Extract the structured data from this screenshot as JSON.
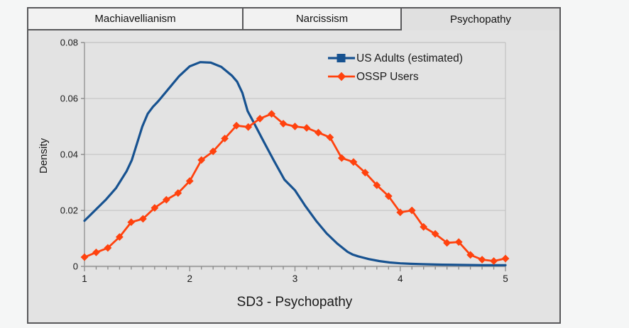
{
  "tabs": {
    "items": [
      {
        "label": "Machiavellianism",
        "active": false
      },
      {
        "label": "Narcissism",
        "active": false
      },
      {
        "label": "Psychopathy",
        "active": true
      }
    ]
  },
  "chart_data": {
    "type": "line",
    "title": "",
    "xlabel": "SD3 - Psychopathy",
    "ylabel": "Density",
    "xlim": [
      1,
      5
    ],
    "ylim": [
      0,
      0.08
    ],
    "xticks": [
      1,
      2,
      3,
      4,
      5
    ],
    "yticks": [
      0,
      0.02,
      0.04,
      0.06,
      0.08
    ],
    "ytick_labels": [
      "0",
      "0.02",
      "0.04",
      "0.06",
      "0.08"
    ],
    "minor_ticks_per_x_unit": 9,
    "grid": true,
    "legend": {
      "position": "inside-top-right",
      "items": [
        "US Adults (estimated)",
        "OSSP Users"
      ]
    },
    "series": [
      {
        "name": "US Adults (estimated)",
        "color": "#175290",
        "marker": "square",
        "markers_on_curve": false,
        "points": [
          [
            1.0,
            0.0163
          ],
          [
            1.1,
            0.02
          ],
          [
            1.2,
            0.0237
          ],
          [
            1.3,
            0.028
          ],
          [
            1.4,
            0.034
          ],
          [
            1.45,
            0.038
          ],
          [
            1.5,
            0.044
          ],
          [
            1.55,
            0.05
          ],
          [
            1.6,
            0.0545
          ],
          [
            1.65,
            0.057
          ],
          [
            1.7,
            0.059
          ],
          [
            1.8,
            0.0635
          ],
          [
            1.9,
            0.068
          ],
          [
            2.0,
            0.0715
          ],
          [
            2.1,
            0.073
          ],
          [
            2.2,
            0.0728
          ],
          [
            2.3,
            0.0713
          ],
          [
            2.4,
            0.0682
          ],
          [
            2.45,
            0.066
          ],
          [
            2.5,
            0.062
          ],
          [
            2.55,
            0.0555
          ],
          [
            2.6,
            0.052
          ],
          [
            2.7,
            0.0448
          ],
          [
            2.8,
            0.0378
          ],
          [
            2.9,
            0.031
          ],
          [
            3.0,
            0.0272
          ],
          [
            3.1,
            0.0215
          ],
          [
            3.2,
            0.0163
          ],
          [
            3.3,
            0.0118
          ],
          [
            3.4,
            0.0082
          ],
          [
            3.5,
            0.0052
          ],
          [
            3.55,
            0.0042
          ],
          [
            3.6,
            0.0036
          ],
          [
            3.7,
            0.0026
          ],
          [
            3.8,
            0.0019
          ],
          [
            3.9,
            0.0014
          ],
          [
            4.0,
            0.0011
          ],
          [
            4.1,
            0.0009
          ],
          [
            4.2,
            0.0008
          ],
          [
            4.4,
            0.0006
          ],
          [
            4.6,
            0.0005
          ],
          [
            4.8,
            0.0004
          ],
          [
            5.0,
            0.0004
          ]
        ]
      },
      {
        "name": "OSSP Users",
        "color": "#ff420e",
        "marker": "diamond",
        "markers_on_curve": true,
        "points": [
          [
            1.0,
            0.0033
          ],
          [
            1.111,
            0.005
          ],
          [
            1.222,
            0.0066
          ],
          [
            1.333,
            0.0105
          ],
          [
            1.444,
            0.0158
          ],
          [
            1.556,
            0.017
          ],
          [
            1.667,
            0.0209
          ],
          [
            1.778,
            0.0238
          ],
          [
            1.889,
            0.0262
          ],
          [
            2.0,
            0.0305
          ],
          [
            2.111,
            0.038
          ],
          [
            2.222,
            0.0411
          ],
          [
            2.333,
            0.0457
          ],
          [
            2.444,
            0.0503
          ],
          [
            2.556,
            0.0498
          ],
          [
            2.667,
            0.0528
          ],
          [
            2.778,
            0.0545
          ],
          [
            2.889,
            0.051
          ],
          [
            3.0,
            0.05
          ],
          [
            3.111,
            0.0495
          ],
          [
            3.222,
            0.0478
          ],
          [
            3.333,
            0.0461
          ],
          [
            3.444,
            0.0387
          ],
          [
            3.556,
            0.0373
          ],
          [
            3.667,
            0.0335
          ],
          [
            3.778,
            0.029
          ],
          [
            3.889,
            0.0251
          ],
          [
            4.0,
            0.0193
          ],
          [
            4.111,
            0.02
          ],
          [
            4.222,
            0.0141
          ],
          [
            4.333,
            0.0116
          ],
          [
            4.444,
            0.0084
          ],
          [
            4.556,
            0.0087
          ],
          [
            4.667,
            0.0041
          ],
          [
            4.778,
            0.0024
          ],
          [
            4.889,
            0.0019
          ],
          [
            5.0,
            0.0028
          ]
        ]
      }
    ]
  },
  "colors": {
    "page_bg": "#f5f6f6",
    "panel_bg": "#e3e3e3",
    "panel_border": "#58585a",
    "tab_bg": "#f2f2f2",
    "tab_active_bg": "#e0e0e0",
    "gridline": "#c8c8c8",
    "wall_edge": "#c2c2c2",
    "axis_line": "#a6a6a6",
    "tick_mark": "#8a8a8a",
    "text": "#1a1a1a",
    "us_adults_blue": "#175290",
    "ossp_orange": "#ff420e"
  }
}
